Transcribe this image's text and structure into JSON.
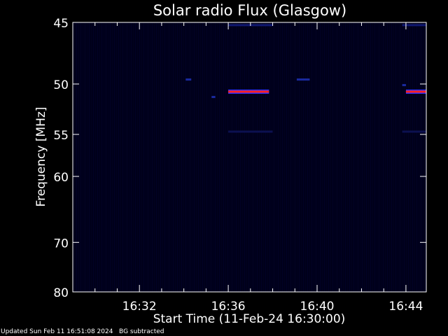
{
  "chart_data": {
    "type": "heatmap",
    "title": "Solar radio Flux (Glasgow)",
    "xlabel": "Start Time (11-Feb-24 16:30:00)",
    "ylabel": "Frequency [MHz]",
    "x_unit": "minutes",
    "xlim": [
      "16:29",
      "16:44:55"
    ],
    "ylim": [
      80,
      45
    ],
    "y_ticks": [
      45,
      50,
      55,
      60,
      70,
      80
    ],
    "y_tick_labels": [
      "45",
      "50",
      "55",
      "60",
      "70",
      "80"
    ],
    "x_ticks": [
      "16:32",
      "16:36",
      "16:40",
      "16:44"
    ],
    "background_color": "#00001a",
    "features": [
      {
        "freq_mhz": 50.7,
        "start": "16:36:00",
        "end": "16:37:50",
        "color": "#ff2020",
        "edge_color": "#3030ff"
      },
      {
        "freq_mhz": 50.7,
        "start": "16:44:00",
        "end": "16:44:55",
        "color": "#ff2020",
        "edge_color": "#3030ff"
      },
      {
        "freq_mhz": 49.6,
        "start": "16:34:05",
        "end": "16:34:20",
        "color": "#1a2aa0"
      },
      {
        "freq_mhz": 49.6,
        "start": "16:39:05",
        "end": "16:39:40",
        "color": "#1a2aa0"
      },
      {
        "freq_mhz": 51.2,
        "start": "16:35:15",
        "end": "16:35:25",
        "color": "#1a2aa0"
      },
      {
        "freq_mhz": 50.1,
        "start": "16:43:50",
        "end": "16:44:00",
        "color": "#1a2aa0"
      },
      {
        "freq_mhz": 45.2,
        "start": "16:36:00",
        "end": "16:38:00",
        "color": "#101870"
      },
      {
        "freq_mhz": 45.2,
        "start": "16:43:50",
        "end": "16:44:55",
        "color": "#101870"
      },
      {
        "freq_mhz": 54.7,
        "start": "16:36:00",
        "end": "16:38:00",
        "color": "#0c1050"
      },
      {
        "freq_mhz": 54.7,
        "start": "16:43:50",
        "end": "16:44:55",
        "color": "#0c1050"
      }
    ]
  },
  "footer": {
    "updated": "Updated Sun Feb 11 16:51:08 2024",
    "note": "BG subtracted"
  }
}
